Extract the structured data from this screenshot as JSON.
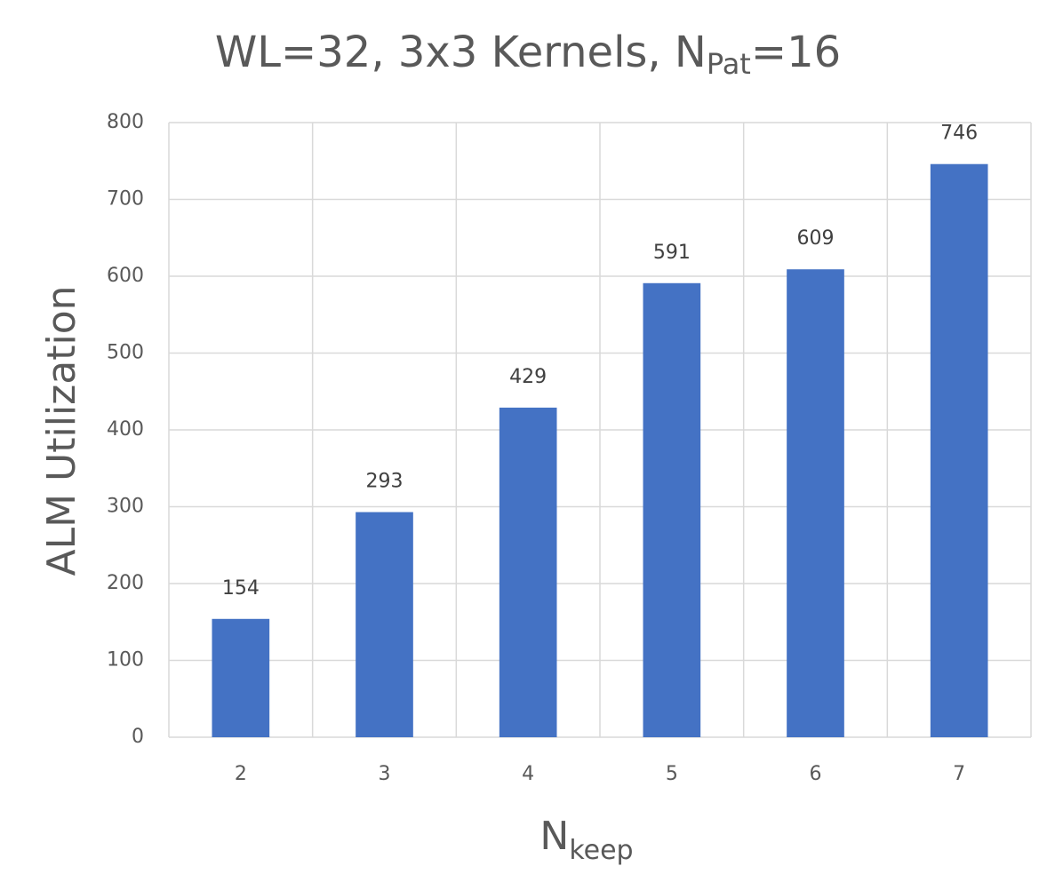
{
  "chart_data": {
    "type": "bar",
    "title_parts": [
      "WL=32, 3x3 Kernels, N",
      "Pat",
      "=16"
    ],
    "x_label_parts": [
      "N",
      "keep"
    ],
    "y_label": "ALM Utilization",
    "categories": [
      "2",
      "3",
      "4",
      "5",
      "6",
      "7"
    ],
    "values": [
      154,
      293,
      429,
      591,
      609,
      746
    ],
    "color": "#4472c4",
    "ylim": [
      0,
      800
    ],
    "yticks": [
      0,
      100,
      200,
      300,
      400,
      500,
      600,
      700,
      800
    ],
    "grid": true
  }
}
